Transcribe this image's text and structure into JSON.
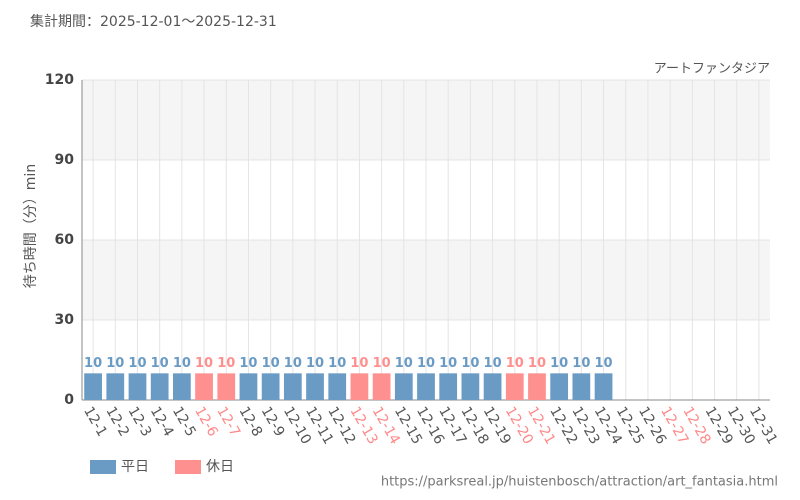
{
  "chart_data": {
    "type": "bar",
    "title": "集計期間：2025-12-01～2025-12-31",
    "subtitle": "アートファンタジア",
    "y_label": "待ち時間（分）min",
    "source": "https://parksreal.jp/huistenbosch/attraction/art_fantasia.html",
    "categories": [
      "12-1",
      "12-2",
      "12-3",
      "12-4",
      "12-5",
      "12-6",
      "12-7",
      "12-8",
      "12-9",
      "12-10",
      "12-11",
      "12-12",
      "12-13",
      "12-14",
      "12-15",
      "12-16",
      "12-17",
      "12-18",
      "12-19",
      "12-20",
      "12-21",
      "12-22",
      "12-23",
      "12-24",
      "12-25",
      "12-26",
      "12-27",
      "12-28",
      "12-29",
      "12-30",
      "12-31"
    ],
    "x_label_colors": [
      "#555",
      "#555",
      "#555",
      "#555",
      "#555",
      "#f88",
      "#f88",
      "#555",
      "#555",
      "#555",
      "#555",
      "#555",
      "#f88",
      "#f88",
      "#555",
      "#555",
      "#555",
      "#555",
      "#555",
      "#f88",
      "#f88",
      "#555",
      "#555",
      "#555",
      "#555",
      "#555",
      "#f88",
      "#f88",
      "#555",
      "#555",
      "#555"
    ],
    "series": [
      {
        "name": "平日",
        "color": "#6a9bc5",
        "values": [
          10,
          10,
          10,
          10,
          10,
          null,
          null,
          10,
          10,
          10,
          10,
          10,
          null,
          null,
          10,
          10,
          10,
          10,
          10,
          null,
          null,
          10,
          10,
          10,
          null,
          null,
          null,
          null,
          null,
          null,
          null
        ]
      },
      {
        "name": "休日",
        "color": "#ff9090",
        "values": [
          null,
          null,
          null,
          null,
          null,
          10,
          10,
          null,
          null,
          null,
          null,
          null,
          10,
          10,
          null,
          null,
          null,
          null,
          null,
          10,
          10,
          null,
          null,
          null,
          null,
          null,
          null,
          null,
          null,
          null,
          null
        ]
      }
    ],
    "ylim": [
      0,
      120
    ],
    "yticks": [
      0,
      30,
      60,
      90,
      120
    ],
    "grid": true,
    "legend": "bottom-left"
  }
}
